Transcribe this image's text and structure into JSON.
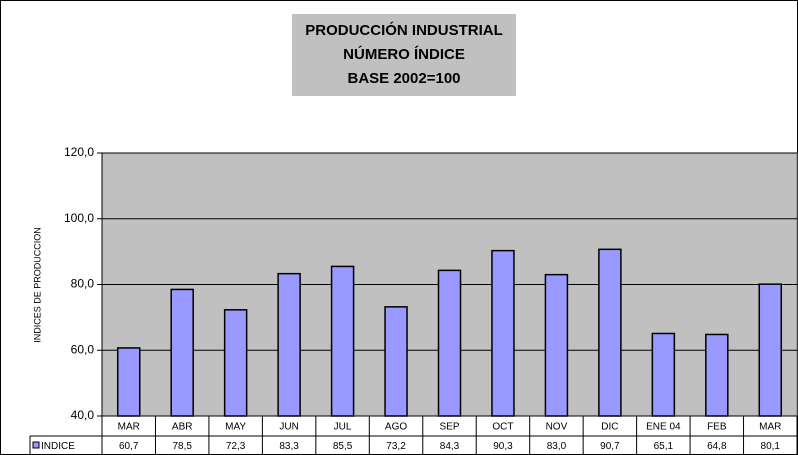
{
  "chart_data": {
    "type": "bar",
    "title": [
      "PRODUCCIÓN INDUSTRIAL",
      "NÚMERO ÍNDICE",
      "BASE 2002=100"
    ],
    "y_label": "INDICES DE PRODUCCION",
    "categories": [
      "MAR",
      "ABR",
      "MAY",
      "JUN",
      "JUL",
      "AGO",
      "SEP",
      "OCT",
      "NOV",
      "DIC",
      "ENE 04",
      "FEB",
      "MAR"
    ],
    "series": [
      {
        "name": "INDICE",
        "color": "#9999ff",
        "values": [
          60.7,
          78.5,
          72.3,
          83.3,
          85.5,
          73.2,
          84.3,
          90.3,
          83.0,
          90.7,
          65.1,
          64.8,
          80.1
        ],
        "value_labels": [
          "60,7",
          "78,5",
          "72,3",
          "83,3",
          "85,5",
          "73,2",
          "84,3",
          "90,3",
          "83,0",
          "90,7",
          "65,1",
          "64,8",
          "80,1"
        ]
      }
    ],
    "ylim": [
      40,
      120
    ],
    "yticks": [
      {
        "value": 40,
        "label": "40,0"
      },
      {
        "value": 60,
        "label": "60,0"
      },
      {
        "value": 80,
        "label": "80,0"
      },
      {
        "value": 100,
        "label": "100,0"
      },
      {
        "value": 120,
        "label": "120,0"
      }
    ],
    "grid": true
  }
}
